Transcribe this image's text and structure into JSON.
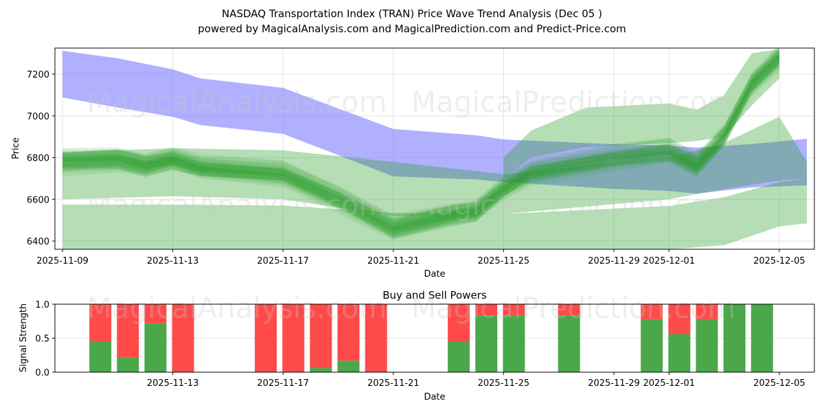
{
  "title_line1": "NASDAQ Transportation Index (TRAN) Price Wave Trend Analysis (Dec 05 )",
  "title_line2": "powered by MagicalAnalysis.com and MagicalPrediction.com and Predict-Price.com",
  "watermarks": [
    "MagicalAnalysis.com",
    "MagicalPrediction.com"
  ],
  "colors": {
    "blue_band": "#7b7bff",
    "green_band": "#2ca02c",
    "buy": "#4aa74a",
    "sell": "#ff4a4a"
  },
  "chart_data": [
    {
      "type": "area",
      "title": "",
      "xlabel": "Date",
      "ylabel": "Price",
      "xticks": [
        "2025-11-09",
        "2025-11-13",
        "2025-11-17",
        "2025-11-21",
        "2025-11-25",
        "2025-11-29",
        "2025-12-01",
        "2025-12-05"
      ],
      "yticks": [
        6400,
        6600,
        6800,
        7000,
        7200
      ],
      "ylim": [
        6360,
        7325
      ],
      "grid": true,
      "bands": [
        {
          "name": "blue-band",
          "color": "#7b7bff",
          "x": [
            "2025-11-09",
            "2025-11-11",
            "2025-11-13",
            "2025-11-14",
            "2025-11-17",
            "2025-11-21",
            "2025-11-24",
            "2025-11-25",
            "2025-11-29",
            "2025-12-01",
            "2025-12-02",
            "2025-12-04",
            "2025-12-06"
          ],
          "upper": [
            7312,
            7276,
            7223,
            7180,
            7134,
            6937,
            6907,
            6887,
            6864,
            6858,
            6848,
            6865,
            6890
          ],
          "lower": [
            7088,
            7040,
            6996,
            6956,
            6914,
            6710,
            6695,
            6683,
            6650,
            6640,
            6627,
            6657,
            6667
          ]
        },
        {
          "name": "green-band-low",
          "color": "#2ca02c",
          "x": [
            "2025-11-09",
            "2025-11-13",
            "2025-11-17",
            "2025-11-21",
            "2025-11-25",
            "2025-12-01",
            "2025-12-03",
            "2025-12-05",
            "2025-12-06"
          ],
          "upper": [
            6575,
            6575,
            6570,
            6535,
            6530,
            6568,
            6610,
            6683,
            6700
          ],
          "lower": [
            6360,
            6360,
            6360,
            6360,
            6360,
            6360,
            6380,
            6470,
            6485
          ]
        },
        {
          "name": "green-band-wide",
          "color": "#2ca02c",
          "x": [
            "2025-11-09",
            "2025-11-13",
            "2025-11-17",
            "2025-11-21",
            "2025-11-25",
            "2025-12-01",
            "2025-12-03",
            "2025-12-05",
            "2025-12-06"
          ],
          "upper": [
            6825,
            6845,
            6835,
            6780,
            6720,
            6800,
            6870,
            6996,
            6780
          ],
          "lower": [
            6600,
            6615,
            6600,
            6520,
            6530,
            6600,
            6650,
            6690,
            6700
          ]
        },
        {
          "name": "green-band-upper",
          "color": "#2ca02c",
          "x": [
            "2025-11-25",
            "2025-11-26",
            "2025-11-28",
            "2025-12-01",
            "2025-12-02",
            "2025-12-03",
            "2025-12-04",
            "2025-12-05"
          ],
          "upper": [
            6800,
            6930,
            7040,
            7060,
            7030,
            7100,
            7300,
            7320
          ],
          "lower": [
            6700,
            6800,
            6850,
            6870,
            6880,
            6900,
            7050,
            7180
          ]
        }
      ],
      "series": [
        {
          "name": "green-wave-core",
          "x": [
            "2025-11-09",
            "2025-11-11",
            "2025-11-12",
            "2025-11-13",
            "2025-11-14",
            "2025-11-17",
            "2025-11-19",
            "2025-11-21",
            "2025-11-23",
            "2025-11-24",
            "2025-11-25",
            "2025-11-26",
            "2025-11-29",
            "2025-12-01",
            "2025-12-02",
            "2025-12-03",
            "2025-12-04",
            "2025-12-05"
          ],
          "y": [
            6780,
            6790,
            6760,
            6790,
            6750,
            6720,
            6600,
            6460,
            6520,
            6540,
            6650,
            6730,
            6800,
            6830,
            6760,
            6900,
            7150,
            7280
          ]
        }
      ]
    },
    {
      "type": "bar",
      "title": "Buy and Sell Powers",
      "xlabel": "Date",
      "ylabel": "Signal Strength",
      "ylim": [
        0,
        1
      ],
      "yticks": [
        "0.0",
        "0.5",
        "1.0"
      ],
      "xticks": [
        "2025-11-13",
        "2025-11-17",
        "2025-11-21",
        "2025-11-25",
        "2025-11-29",
        "2025-12-01",
        "2025-12-05"
      ],
      "categories": [
        "2025-11-10",
        "2025-11-11",
        "2025-11-12",
        "2025-11-13",
        "2025-11-16",
        "2025-11-17",
        "2025-11-18",
        "2025-11-19",
        "2025-11-20",
        "2025-11-23",
        "2025-11-24",
        "2025-11-25",
        "2025-11-27",
        "2025-11-30",
        "2025-12-01",
        "2025-12-02",
        "2025-12-03",
        "2025-12-04"
      ],
      "series": [
        {
          "name": "Buy",
          "color": "#4aa74a",
          "values": [
            0.45,
            0.22,
            0.72,
            0,
            0,
            0,
            0.06,
            0.17,
            0,
            0.45,
            0.83,
            0.83,
            0.83,
            0.78,
            0.56,
            0.78,
            1,
            1
          ]
        },
        {
          "name": "Sell",
          "color": "#ff4a4a",
          "values": [
            0.55,
            0.78,
            0.28,
            1,
            1,
            1,
            0.94,
            0.83,
            1,
            0.55,
            0.17,
            0.17,
            0.17,
            0.22,
            0.44,
            0.22,
            0,
            0
          ]
        }
      ]
    }
  ]
}
